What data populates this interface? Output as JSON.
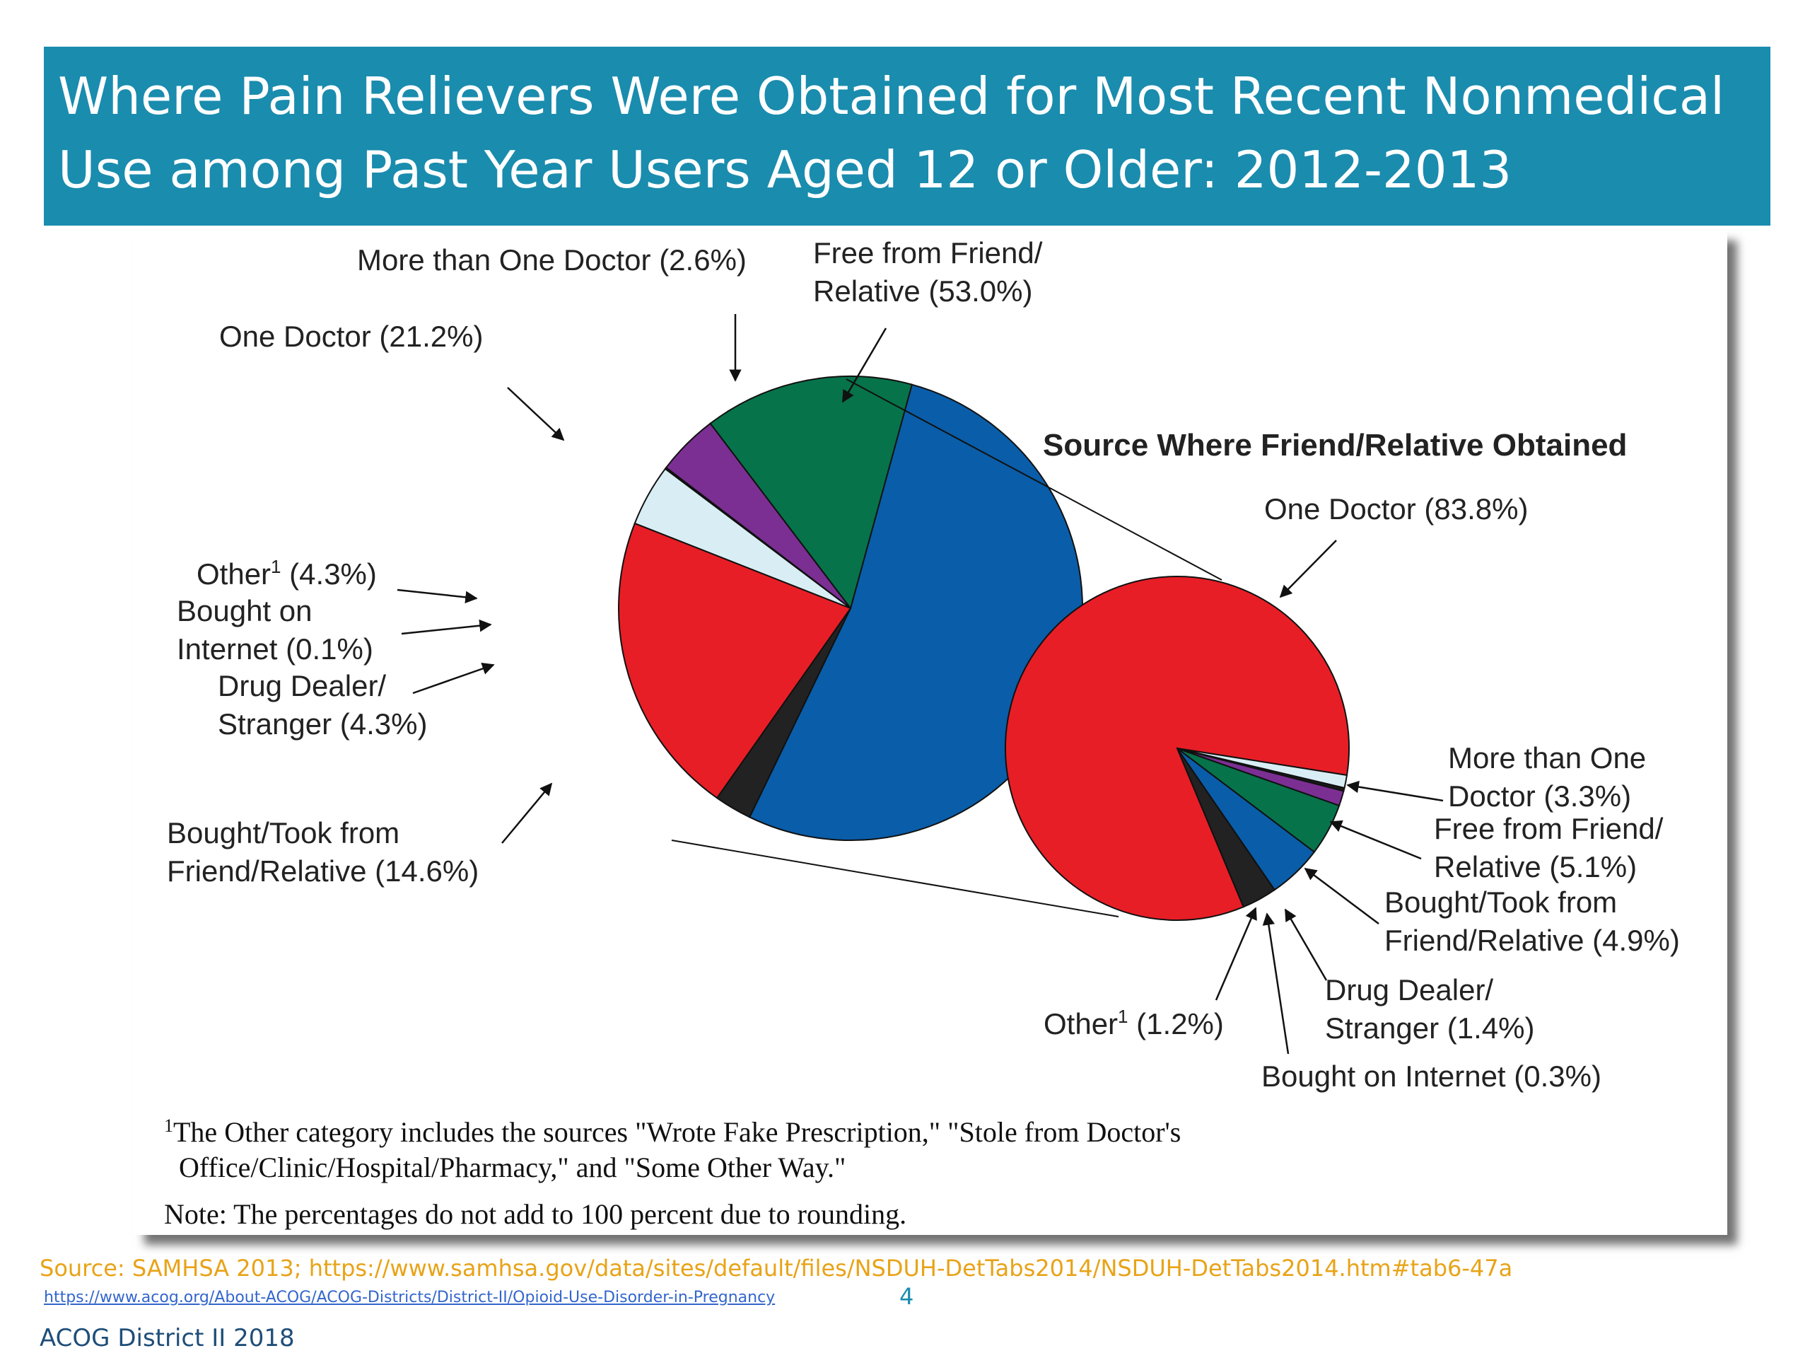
{
  "title": "Where Pain Relievers Were Obtained for Most Recent Nonmedical Use among Past Year Users Aged 12 or Older: 2012-2013",
  "colors": {
    "header_bg": "#1a8cae",
    "header_text": "#ffffff",
    "source_text": "#e8a317",
    "link": "#3366cc",
    "footer_text": "#1f4e79"
  },
  "chart_data": [
    {
      "type": "pie",
      "title": "",
      "series_colors": [
        "#0a5da8",
        "#222222",
        "#e81e26",
        "#d9eef4",
        "#1a1a1a",
        "#7b2f93",
        "#07734a"
      ],
      "slices": [
        {
          "label_lines": [
            "Free from Friend/",
            "Relative (53.0%)"
          ],
          "value": 53.0,
          "color": "#0a5da8"
        },
        {
          "label_lines": [
            "More than One Doctor (2.6%)"
          ],
          "value": 2.6,
          "color": "#222222"
        },
        {
          "label_lines": [
            "One Doctor (21.2%)"
          ],
          "value": 21.2,
          "color": "#e81e26"
        },
        {
          "label_lines": [
            "Other",
            "1",
            " (4.3%)"
          ],
          "value": 4.3,
          "color": "#d9eef4"
        },
        {
          "label_lines": [
            "Bought on",
            "Internet (0.1%)"
          ],
          "value": 0.1,
          "color": "#1a1a1a"
        },
        {
          "label_lines": [
            "Drug Dealer/",
            "Stranger (4.3%)"
          ],
          "value": 4.3,
          "color": "#7b2f93"
        },
        {
          "label_lines": [
            "Bought/Took from",
            "Friend/Relative (14.6%)"
          ],
          "value": 14.6,
          "color": "#07734a"
        }
      ]
    },
    {
      "type": "pie",
      "title": "Source Where Friend/Relative Obtained",
      "slices": [
        {
          "label_lines": [
            "One Doctor (83.8%)"
          ],
          "value": 83.8,
          "color": "#e81e26"
        },
        {
          "label_lines": [
            "More than One",
            "Doctor (3.3%)"
          ],
          "value": 3.3,
          "color": "#222222"
        },
        {
          "label_lines": [
            "Free from Friend/",
            "Relative (5.1%)"
          ],
          "value": 5.1,
          "color": "#0a5da8"
        },
        {
          "label_lines": [
            "Bought/Took from",
            "Friend/Relative (4.9%)"
          ],
          "value": 4.9,
          "color": "#07734a"
        },
        {
          "label_lines": [
            "Drug Dealer/",
            "Stranger (1.4%)"
          ],
          "value": 1.4,
          "color": "#7b2f93"
        },
        {
          "label_lines": [
            "Bought on Internet (0.3%)"
          ],
          "value": 0.3,
          "color": "#1a1a1a"
        },
        {
          "label_lines": [
            "Other",
            "1",
            " (1.2%)"
          ],
          "value": 1.2,
          "color": "#d9eef4"
        }
      ]
    }
  ],
  "footnote": {
    "marker": "1",
    "line1": "The Other category includes the sources \"Wrote Fake Prescription,\" \"Stole from Doctor's",
    "line2": "Office/Clinic/Hospital/Pharmacy,\" and \"Some Other Way.\""
  },
  "note": "Note:  The percentages do not add to 100 percent due to rounding.",
  "source": "Source: SAMHSA 2013; https://www.samhsa.gov/data/sites/default/files/NSDUH-DetTabs2014/NSDUH-DetTabs2014.htm#tab6-47a",
  "url": "https://www.acog.org/About-ACOG/ACOG-Districts/District-II/Opioid-Use-Disorder-in-Pregnancy",
  "page_number": "4",
  "footer": "ACOG District II 2018"
}
